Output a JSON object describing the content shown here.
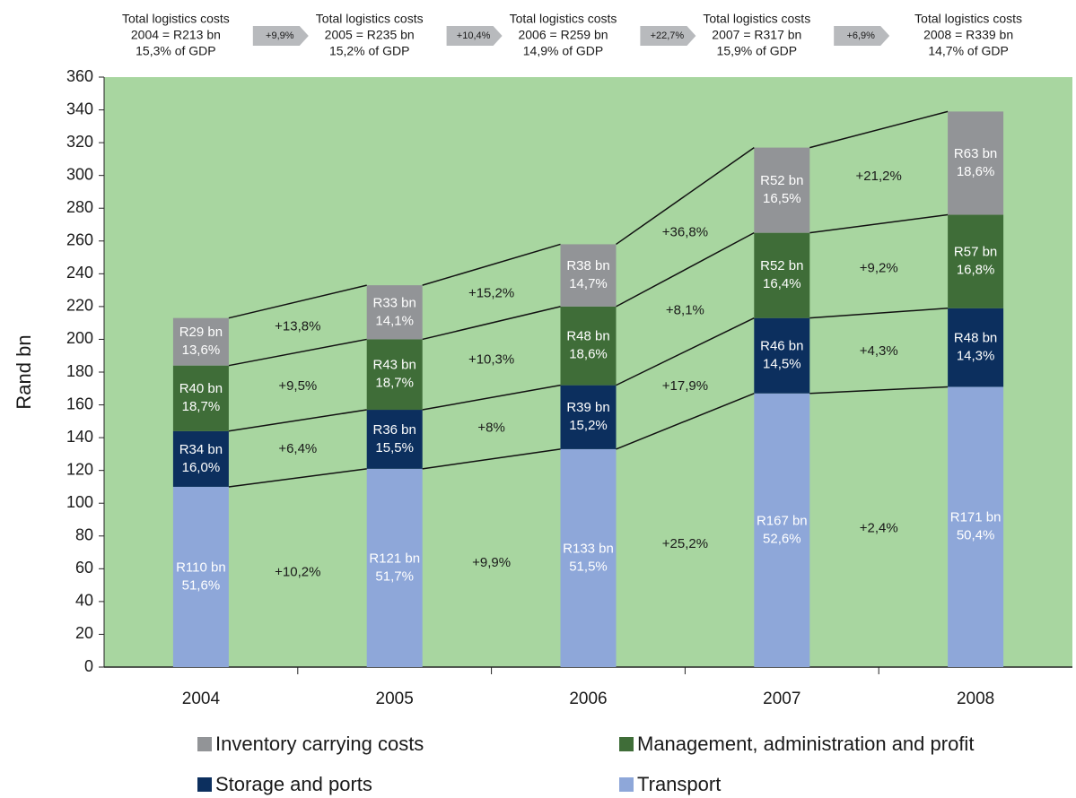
{
  "chart_data": {
    "type": "stacked-bar",
    "ylabel": "Rand bn",
    "categories": [
      "2004",
      "2005",
      "2006",
      "2007",
      "2008"
    ],
    "ylim": [
      0,
      360
    ],
    "yticks": [
      0,
      20,
      40,
      60,
      80,
      100,
      120,
      140,
      160,
      180,
      200,
      220,
      240,
      260,
      280,
      300,
      320,
      340,
      360
    ],
    "plot_color": "#a8d6a0",
    "totals": [
      [
        "Total logistics costs",
        "2004 = R213 bn",
        "15,3% of GDP"
      ],
      [
        "Total logistics costs",
        "2005 = R235 bn",
        "15,2% of GDP"
      ],
      [
        "Total logistics costs",
        "2006 = R259 bn",
        "14,9% of GDP"
      ],
      [
        "Total logistics costs",
        "2007 = R317 bn",
        "15,9% of GDP"
      ],
      [
        "Total logistics costs",
        "2008 = R339 bn",
        "14,7% of GDP"
      ]
    ],
    "total_growth": [
      "+9,9%",
      "+10,4%",
      "+22,7%",
      "+6,9%"
    ],
    "series": [
      {
        "name": "Inventory carrying costs",
        "color": "#929497",
        "values": [
          29,
          33,
          38,
          52,
          63
        ],
        "value_labels": [
          "R29 bn",
          "R33 bn",
          "R38 bn",
          "R52 bn",
          "R63 bn"
        ],
        "shares": [
          "13,6%",
          "14,1%",
          "14,7%",
          "16,5%",
          "18,6%"
        ],
        "growth": [
          "+13,8%",
          "+15,2%",
          "+36,8%",
          "+21,2%"
        ]
      },
      {
        "name": "Management, administration and profit",
        "color": "#3f6d38",
        "values": [
          40,
          43,
          48,
          52,
          57
        ],
        "value_labels": [
          "R40 bn",
          "R43 bn",
          "R48 bn",
          "R52 bn",
          "R57 bn"
        ],
        "shares": [
          "18,7%",
          "18,7%",
          "18,6%",
          "16,4%",
          "16,8%"
        ],
        "growth": [
          "+9,5%",
          "+10,3%",
          "+8,1%",
          "+9,2%"
        ]
      },
      {
        "name": "Storage and ports",
        "color": "#0c2f5e",
        "values": [
          34,
          36,
          39,
          46,
          48
        ],
        "value_labels": [
          "R34 bn",
          "R36 bn",
          "R39 bn",
          "R46 bn",
          "R48 bn"
        ],
        "shares": [
          "16,0%",
          "15,5%",
          "15,2%",
          "14,5%",
          "14,3%"
        ],
        "growth": [
          "+6,4%",
          "+8%",
          "+17,9%",
          "+4,3%"
        ]
      },
      {
        "name": "Transport",
        "color": "#8ea7d9",
        "values": [
          110,
          121,
          133,
          167,
          171
        ],
        "value_labels": [
          "R110 bn",
          "R121 bn",
          "R133 bn",
          "R167 bn",
          "R171 bn"
        ],
        "shares": [
          "51,6%",
          "51,7%",
          "51,5%",
          "52,6%",
          "50,4%"
        ],
        "growth": [
          "+10,2%",
          "+9,9%",
          "+25,2%",
          "+2,4%"
        ]
      }
    ]
  }
}
